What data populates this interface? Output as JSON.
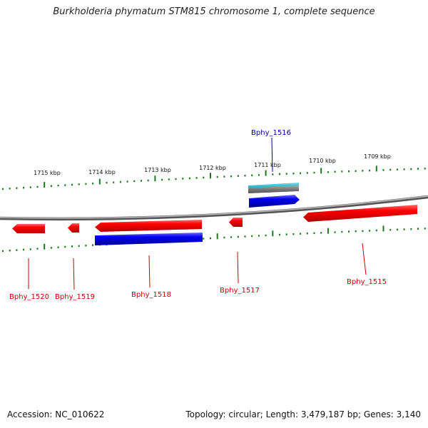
{
  "header": {
    "title": "Burkholderia phymatum STM815 chromosome 1, complete sequence"
  },
  "footer": {
    "accession": "Accession: NC_010622",
    "summary": "Topology: circular; Length: 3,479,187 bp; Genes: 3,140"
  },
  "colors": {
    "forward_gene": "#ff0000",
    "reverse_gene": "#0000dd",
    "other_feature": "#22aabb",
    "tick": "#1a7a1a",
    "backbone": "#888888",
    "label_forward": "#cc0000",
    "label_reverse": "#000099"
  },
  "scale_labels": [
    "1715 kbp",
    "1714 kbp",
    "1713 kbp",
    "1712 kbp",
    "1711 kbp",
    "1710 kbp",
    "1709 kbp"
  ],
  "gene_labels": [
    {
      "text": "Bphy_1516",
      "strand": "reverse"
    },
    {
      "text": "Bphy_1520",
      "strand": "forward"
    },
    {
      "text": "Bphy_1519",
      "strand": "forward"
    },
    {
      "text": "Bphy_1518",
      "strand": "forward"
    },
    {
      "text": "Bphy_1517",
      "strand": "forward"
    },
    {
      "text": "Bphy_1515",
      "strand": "forward"
    }
  ]
}
